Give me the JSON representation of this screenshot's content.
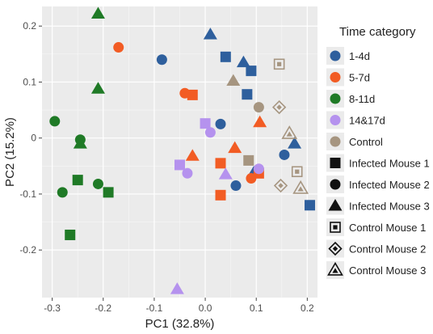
{
  "chart_data": {
    "type": "scatter",
    "xlabel": "PC1 (32.8%)",
    "ylabel": "PC2 (15.2%)",
    "xlim": [
      -0.32,
      0.22
    ],
    "ylim": [
      -0.285,
      0.235
    ],
    "xticks": [
      -0.3,
      -0.2,
      -0.1,
      0.0,
      0.1,
      0.2
    ],
    "xtick_labels": [
      "-0.3",
      "-0.2",
      "-0.1",
      "0.0",
      "0.1",
      "0.2"
    ],
    "yticks": [
      -0.2,
      -0.1,
      0.0,
      0.1,
      0.2
    ],
    "ytick_labels": [
      "-0.2",
      "-0.1",
      "0",
      "0.1",
      "0.2"
    ],
    "grid": true,
    "panel_background": "#ebebeb",
    "legend_position": "right",
    "legend": {
      "color_title": "Time category",
      "colors": [
        {
          "key": "d1_4",
          "label": "1-4d",
          "color": "#2e5f9d"
        },
        {
          "key": "d5_7",
          "label": "5-7d",
          "color": "#f25c24"
        },
        {
          "key": "d8_11",
          "label": "8-11d",
          "color": "#1f7a26"
        },
        {
          "key": "d14_17",
          "label": "14&17d",
          "color": "#b592ee"
        },
        {
          "key": "control",
          "label": "Control",
          "color": "#a69580"
        }
      ],
      "shapes": [
        {
          "key": "inf1",
          "label": "Infected Mouse 1",
          "shape": "square"
        },
        {
          "key": "inf2",
          "label": "Infected Mouse 2",
          "shape": "circle"
        },
        {
          "key": "inf3",
          "label": "Infected Mouse 3",
          "shape": "triangle"
        },
        {
          "key": "ctl1",
          "label": "Control Mouse 1",
          "shape": "open-square"
        },
        {
          "key": "ctl2",
          "label": "Control Mouse 2",
          "shape": "open-diamond"
        },
        {
          "key": "ctl3",
          "label": "Control Mouse 3",
          "shape": "open-triangle"
        }
      ]
    },
    "points": [
      {
        "x": -0.085,
        "y": 0.14,
        "group": "d1_4",
        "mouse": "inf2"
      },
      {
        "x": 0.01,
        "y": 0.185,
        "group": "d1_4",
        "mouse": "inf3"
      },
      {
        "x": 0.04,
        "y": 0.145,
        "group": "d1_4",
        "mouse": "inf1"
      },
      {
        "x": 0.075,
        "y": 0.135,
        "group": "d1_4",
        "mouse": "inf3"
      },
      {
        "x": 0.09,
        "y": 0.12,
        "group": "d1_4",
        "mouse": "inf1"
      },
      {
        "x": 0.082,
        "y": 0.078,
        "group": "d1_4",
        "mouse": "inf1"
      },
      {
        "x": 0.03,
        "y": 0.025,
        "group": "d1_4",
        "mouse": "inf2"
      },
      {
        "x": 0.175,
        "y": -0.01,
        "group": "d1_4",
        "mouse": "inf3"
      },
      {
        "x": 0.155,
        "y": -0.03,
        "group": "d1_4",
        "mouse": "inf2"
      },
      {
        "x": 0.095,
        "y": -0.062,
        "group": "d1_4",
        "mouse": "inf3"
      },
      {
        "x": 0.06,
        "y": -0.085,
        "group": "d1_4",
        "mouse": "inf2"
      },
      {
        "x": 0.205,
        "y": -0.12,
        "group": "d1_4",
        "mouse": "inf1"
      },
      {
        "x": -0.17,
        "y": 0.162,
        "group": "d5_7",
        "mouse": "inf2"
      },
      {
        "x": -0.04,
        "y": 0.08,
        "group": "d5_7",
        "mouse": "inf2"
      },
      {
        "x": -0.025,
        "y": 0.077,
        "group": "d5_7",
        "mouse": "inf1"
      },
      {
        "x": 0.107,
        "y": 0.028,
        "group": "d5_7",
        "mouse": "inf3"
      },
      {
        "x": -0.025,
        "y": -0.032,
        "group": "d5_7",
        "mouse": "inf3"
      },
      {
        "x": 0.058,
        "y": -0.018,
        "group": "d5_7",
        "mouse": "inf3"
      },
      {
        "x": 0.03,
        "y": -0.045,
        "group": "d5_7",
        "mouse": "inf1"
      },
      {
        "x": 0.09,
        "y": -0.072,
        "group": "d5_7",
        "mouse": "inf2"
      },
      {
        "x": 0.105,
        "y": -0.063,
        "group": "d5_7",
        "mouse": "inf1"
      },
      {
        "x": 0.03,
        "y": -0.102,
        "group": "d5_7",
        "mouse": "inf1"
      },
      {
        "x": -0.21,
        "y": 0.222,
        "group": "d8_11",
        "mouse": "inf3"
      },
      {
        "x": -0.21,
        "y": 0.088,
        "group": "d8_11",
        "mouse": "inf3"
      },
      {
        "x": -0.295,
        "y": 0.03,
        "group": "d8_11",
        "mouse": "inf2"
      },
      {
        "x": -0.245,
        "y": -0.003,
        "group": "d8_11",
        "mouse": "inf2"
      },
      {
        "x": -0.245,
        "y": -0.01,
        "group": "d8_11",
        "mouse": "inf3"
      },
      {
        "x": -0.25,
        "y": -0.075,
        "group": "d8_11",
        "mouse": "inf1"
      },
      {
        "x": -0.28,
        "y": -0.097,
        "group": "d8_11",
        "mouse": "inf2"
      },
      {
        "x": -0.21,
        "y": -0.082,
        "group": "d8_11",
        "mouse": "inf2"
      },
      {
        "x": -0.19,
        "y": -0.097,
        "group": "d8_11",
        "mouse": "inf1"
      },
      {
        "x": -0.265,
        "y": -0.173,
        "group": "d8_11",
        "mouse": "inf1"
      },
      {
        "x": -0.0,
        "y": 0.026,
        "group": "d14_17",
        "mouse": "inf1"
      },
      {
        "x": 0.01,
        "y": 0.01,
        "group": "d14_17",
        "mouse": "inf2"
      },
      {
        "x": -0.05,
        "y": -0.048,
        "group": "d14_17",
        "mouse": "inf1"
      },
      {
        "x": -0.035,
        "y": -0.063,
        "group": "d14_17",
        "mouse": "inf2"
      },
      {
        "x": 0.04,
        "y": -0.065,
        "group": "d14_17",
        "mouse": "inf3"
      },
      {
        "x": 0.105,
        "y": -0.055,
        "group": "d14_17",
        "mouse": "inf2"
      },
      {
        "x": -0.055,
        "y": -0.27,
        "group": "d14_17",
        "mouse": "inf3"
      },
      {
        "x": 0.055,
        "y": 0.102,
        "group": "control",
        "mouse": "inf3"
      },
      {
        "x": 0.105,
        "y": 0.055,
        "group": "control",
        "mouse": "inf2"
      },
      {
        "x": 0.085,
        "y": -0.04,
        "group": "control",
        "mouse": "inf1"
      },
      {
        "x": 0.145,
        "y": 0.132,
        "group": "control",
        "mouse": "ctl1"
      },
      {
        "x": 0.145,
        "y": 0.055,
        "group": "control",
        "mouse": "ctl2"
      },
      {
        "x": 0.165,
        "y": 0.008,
        "group": "control",
        "mouse": "ctl3"
      },
      {
        "x": 0.18,
        "y": -0.06,
        "group": "control",
        "mouse": "ctl1"
      },
      {
        "x": 0.148,
        "y": -0.085,
        "group": "control",
        "mouse": "ctl2"
      },
      {
        "x": 0.187,
        "y": -0.09,
        "group": "control",
        "mouse": "ctl3"
      }
    ]
  }
}
